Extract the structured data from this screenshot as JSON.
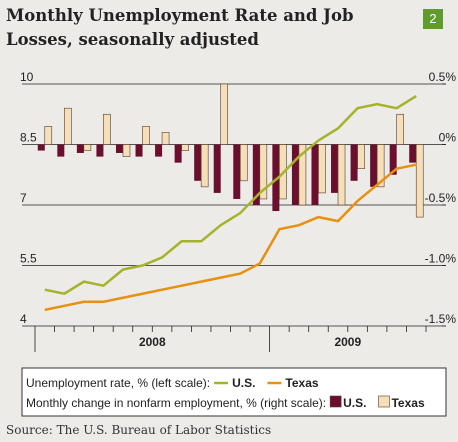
{
  "chart_data": {
    "type": "combo",
    "title": "Monthly Unemployment Rate and Job Losses, seasonally adjusted",
    "badge": "2",
    "source": "Source: The U.S. Bureau of Labor Statistics",
    "categories": [
      null,
      null,
      null,
      null,
      null,
      null,
      null,
      null,
      null,
      null,
      null,
      null,
      null,
      null,
      null,
      null,
      null,
      null,
      null,
      null
    ],
    "year_labels": [
      "2008",
      "2009"
    ],
    "ylim": [
      4,
      10
    ],
    "yticks": [
      4,
      5.5,
      7,
      8.5,
      10
    ],
    "y2lim": [
      -1.5,
      0.5
    ],
    "y2ticks": [
      {
        "value": -1.5,
        "label": "-1.5%"
      },
      {
        "value": -1.0,
        "label": "-1.0%"
      },
      {
        "value": -0.5,
        "label": "-0.5%"
      },
      {
        "value": 0,
        "label": "0%"
      },
      {
        "value": 0.5,
        "label": "0.5%"
      }
    ],
    "grid": true,
    "legend_titles": [
      "Unemployment rate, % (left scale):",
      "Monthly change in nonfarm employment, % (right scale):"
    ],
    "series": [
      {
        "name": "U.S.",
        "type": "line",
        "color": "#a5b32a",
        "legend_group": 0,
        "values": [
          4.9,
          4.8,
          5.1,
          5.0,
          5.4,
          5.5,
          5.7,
          6.1,
          6.1,
          6.5,
          6.8,
          7.3,
          7.7,
          8.2,
          8.6,
          8.9,
          9.4,
          9.5,
          9.4,
          9.7
        ]
      },
      {
        "name": "Texas",
        "type": "line",
        "color": "#e8900f",
        "legend_group": 0,
        "values": [
          4.4,
          4.5,
          4.6,
          4.6,
          4.7,
          4.8,
          4.9,
          5.0,
          5.1,
          5.2,
          5.3,
          5.55,
          6.4,
          6.5,
          6.7,
          6.6,
          7.1,
          7.5,
          7.9,
          8.0
        ]
      },
      {
        "name": "U.S.",
        "type": "bar",
        "axis": "y2",
        "color": "#6b0f2f",
        "legend_group": 1,
        "values": [
          -0.05,
          -0.1,
          -0.07,
          -0.1,
          -0.07,
          -0.1,
          -0.1,
          -0.15,
          -0.3,
          -0.4,
          -0.45,
          -0.5,
          -0.55,
          -0.5,
          -0.5,
          -0.4,
          -0.3,
          -0.35,
          -0.25,
          -0.15
        ]
      },
      {
        "name": "Texas",
        "type": "bar",
        "axis": "y2",
        "color": "#f5dfb8",
        "legend_group": 1,
        "values": [
          0.15,
          0.3,
          -0.05,
          0.25,
          -0.1,
          0.15,
          0.1,
          -0.05,
          -0.35,
          0.5,
          -0.3,
          -0.45,
          -0.45,
          -0.5,
          -0.4,
          -0.5,
          -0.2,
          -0.35,
          0.25,
          -0.6
        ]
      }
    ]
  }
}
